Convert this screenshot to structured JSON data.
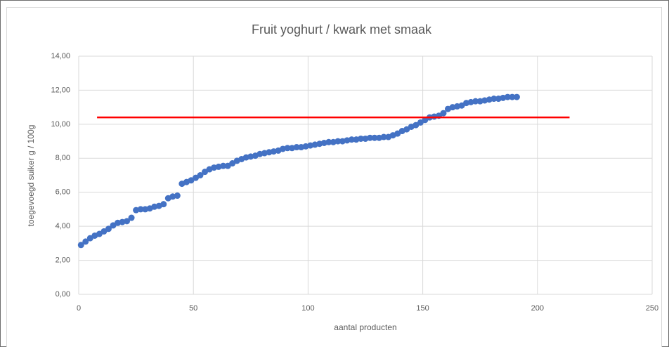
{
  "chart_data": {
    "type": "scatter",
    "title": "Fruit yoghurt / kwark met smaak",
    "xlabel": "aantal producten",
    "ylabel": "toegevoegd suiker g / 100g",
    "xlim": [
      0,
      250
    ],
    "xticks": [
      0,
      50,
      100,
      150,
      200,
      250
    ],
    "ylim": [
      0,
      14
    ],
    "yticks": [
      {
        "value": 0,
        "label": "0,00"
      },
      {
        "value": 2,
        "label": "2,00"
      },
      {
        "value": 4,
        "label": "4,00"
      },
      {
        "value": 6,
        "label": "6,00"
      },
      {
        "value": 8,
        "label": "8,00"
      },
      {
        "value": 10,
        "label": "10,00"
      },
      {
        "value": 12,
        "label": "12,00"
      },
      {
        "value": 14,
        "label": "14,00"
      }
    ],
    "grid": true,
    "series": [
      {
        "type": "scatter",
        "color": "#4472c4",
        "x": [
          1,
          3,
          5,
          7,
          9,
          11,
          13,
          15,
          17,
          19,
          21,
          23,
          25,
          27,
          29,
          31,
          33,
          35,
          37,
          39,
          41,
          43,
          45,
          47,
          49,
          51,
          53,
          55,
          57,
          59,
          61,
          63,
          65,
          67,
          69,
          71,
          73,
          75,
          77,
          79,
          81,
          83,
          85,
          87,
          89,
          91,
          93,
          95,
          97,
          99,
          101,
          103,
          105,
          107,
          109,
          111,
          113,
          115,
          117,
          119,
          121,
          123,
          125,
          127,
          129,
          131,
          133,
          135,
          137,
          139,
          141,
          143,
          145,
          147,
          149,
          151,
          153,
          155,
          157,
          159,
          161,
          163,
          165,
          167,
          169,
          171,
          173,
          175,
          177,
          179,
          181,
          183,
          185,
          187,
          189,
          191
        ],
        "values": [
          2.9,
          3.1,
          3.3,
          3.45,
          3.55,
          3.7,
          3.85,
          4.05,
          4.2,
          4.25,
          4.3,
          4.5,
          4.95,
          5.0,
          5.0,
          5.05,
          5.15,
          5.2,
          5.3,
          5.65,
          5.75,
          5.8,
          6.5,
          6.6,
          6.7,
          6.85,
          7.0,
          7.2,
          7.35,
          7.45,
          7.5,
          7.55,
          7.55,
          7.7,
          7.85,
          7.95,
          8.05,
          8.1,
          8.15,
          8.25,
          8.3,
          8.35,
          8.4,
          8.45,
          8.55,
          8.6,
          8.6,
          8.65,
          8.65,
          8.7,
          8.75,
          8.8,
          8.85,
          8.9,
          8.95,
          8.95,
          9.0,
          9.0,
          9.05,
          9.1,
          9.1,
          9.15,
          9.15,
          9.2,
          9.2,
          9.2,
          9.25,
          9.25,
          9.35,
          9.45,
          9.6,
          9.7,
          9.85,
          9.95,
          10.1,
          10.25,
          10.4,
          10.45,
          10.5,
          10.65,
          10.9,
          11.0,
          11.05,
          11.1,
          11.25,
          11.3,
          11.35,
          11.35,
          11.4,
          11.45,
          11.5,
          11.5,
          11.55,
          11.6,
          11.6,
          11.6
        ]
      },
      {
        "type": "line",
        "color": "#ff0000",
        "x": [
          8,
          214
        ],
        "values": [
          10.4,
          10.4
        ]
      }
    ]
  }
}
